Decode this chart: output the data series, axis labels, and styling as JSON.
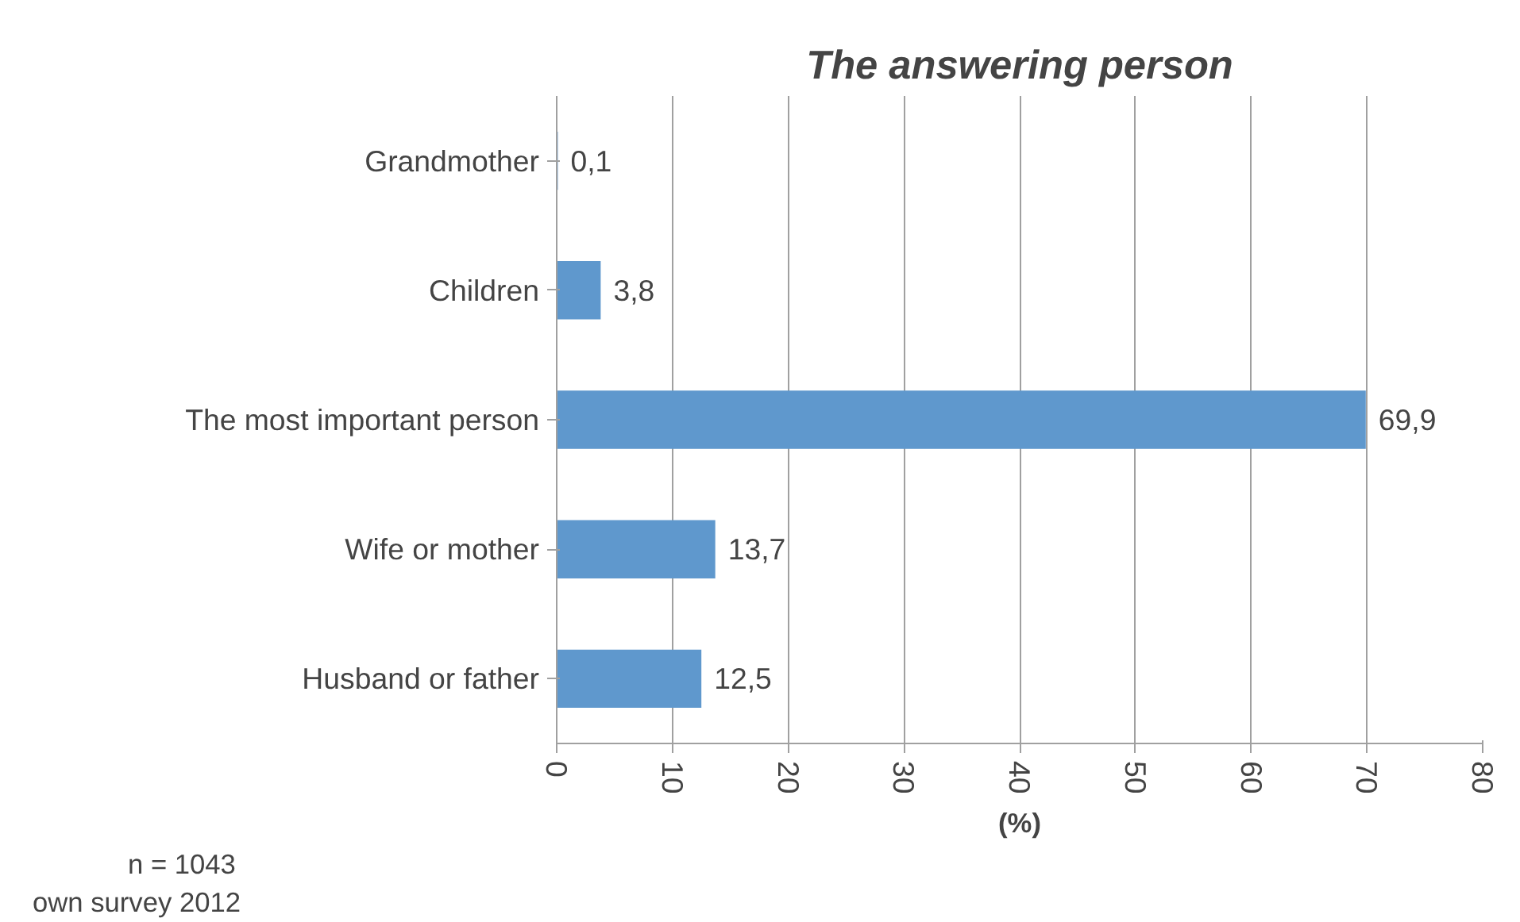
{
  "chart_data": {
    "type": "bar",
    "orientation": "horizontal",
    "title": "The answering person",
    "xlabel": "(%)",
    "categories": [
      "Grandmother",
      "Children",
      "The most important person",
      "Wife or mother",
      "Husband or father"
    ],
    "values": [
      0.1,
      3.8,
      69.9,
      13.7,
      12.5
    ],
    "value_labels": [
      "0,1",
      "3,8",
      "69,9",
      "13,7",
      "12,5"
    ],
    "color": "#5f98cd",
    "xlim": [
      0,
      80
    ],
    "xticks": [
      0,
      10,
      20,
      30,
      40,
      50,
      60,
      70,
      80
    ],
    "grid": "x",
    "annotations": [
      "n = 1043",
      "own survey 2012"
    ]
  }
}
